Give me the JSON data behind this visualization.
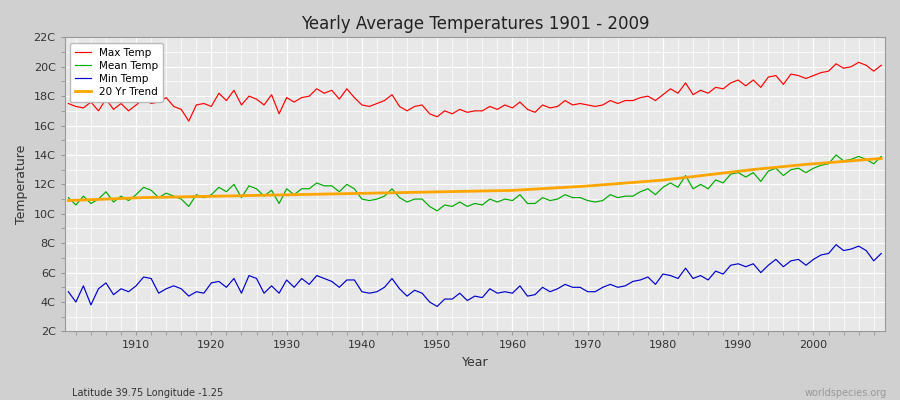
{
  "title": "Yearly Average Temperatures 1901 - 2009",
  "xlabel": "Year",
  "ylabel": "Temperature",
  "subtitle": "Latitude 39.75 Longitude -1.25",
  "watermark": "worldspecies.org",
  "years": [
    1901,
    1902,
    1903,
    1904,
    1905,
    1906,
    1907,
    1908,
    1909,
    1910,
    1911,
    1912,
    1913,
    1914,
    1915,
    1916,
    1917,
    1918,
    1919,
    1920,
    1921,
    1922,
    1923,
    1924,
    1925,
    1926,
    1927,
    1928,
    1929,
    1930,
    1931,
    1932,
    1933,
    1934,
    1935,
    1936,
    1937,
    1938,
    1939,
    1940,
    1941,
    1942,
    1943,
    1944,
    1945,
    1946,
    1947,
    1948,
    1949,
    1950,
    1951,
    1952,
    1953,
    1954,
    1955,
    1956,
    1957,
    1958,
    1959,
    1960,
    1961,
    1962,
    1963,
    1964,
    1965,
    1966,
    1967,
    1968,
    1969,
    1970,
    1971,
    1972,
    1973,
    1974,
    1975,
    1976,
    1977,
    1978,
    1979,
    1980,
    1981,
    1982,
    1983,
    1984,
    1985,
    1986,
    1987,
    1988,
    1989,
    1990,
    1991,
    1992,
    1993,
    1994,
    1995,
    1996,
    1997,
    1998,
    1999,
    2000,
    2001,
    2002,
    2003,
    2004,
    2005,
    2006,
    2007,
    2008,
    2009
  ],
  "max_temp": [
    17.5,
    17.3,
    17.2,
    17.6,
    17.0,
    17.8,
    17.1,
    17.5,
    17.0,
    17.4,
    17.8,
    17.5,
    17.6,
    17.9,
    17.3,
    17.1,
    16.3,
    17.4,
    17.5,
    17.3,
    18.2,
    17.7,
    18.4,
    17.4,
    18.0,
    17.8,
    17.4,
    18.1,
    16.8,
    17.9,
    17.6,
    17.9,
    18.0,
    18.5,
    18.2,
    18.4,
    17.8,
    18.5,
    17.9,
    17.4,
    17.3,
    17.5,
    17.7,
    18.1,
    17.3,
    17.0,
    17.3,
    17.4,
    16.8,
    16.6,
    17.0,
    16.8,
    17.1,
    16.9,
    17.0,
    17.0,
    17.3,
    17.1,
    17.4,
    17.2,
    17.6,
    17.1,
    16.9,
    17.4,
    17.2,
    17.3,
    17.7,
    17.4,
    17.5,
    17.4,
    17.3,
    17.4,
    17.7,
    17.5,
    17.7,
    17.7,
    17.9,
    18.0,
    17.7,
    18.1,
    18.5,
    18.2,
    18.9,
    18.1,
    18.4,
    18.2,
    18.6,
    18.5,
    18.9,
    19.1,
    18.7,
    19.1,
    18.6,
    19.3,
    19.4,
    18.8,
    19.5,
    19.4,
    19.2,
    19.4,
    19.6,
    19.7,
    20.2,
    19.9,
    20.0,
    20.3,
    20.1,
    19.7,
    20.1
  ],
  "mean_temp": [
    11.1,
    10.6,
    11.2,
    10.7,
    11.0,
    11.5,
    10.8,
    11.2,
    10.9,
    11.3,
    11.8,
    11.6,
    11.1,
    11.4,
    11.2,
    11.0,
    10.5,
    11.3,
    11.1,
    11.3,
    11.8,
    11.5,
    12.0,
    11.1,
    11.9,
    11.7,
    11.2,
    11.6,
    10.7,
    11.7,
    11.3,
    11.7,
    11.7,
    12.1,
    11.9,
    11.9,
    11.5,
    12.0,
    11.7,
    11.0,
    10.9,
    11.0,
    11.2,
    11.7,
    11.1,
    10.8,
    11.0,
    11.0,
    10.5,
    10.2,
    10.6,
    10.5,
    10.8,
    10.5,
    10.7,
    10.6,
    11.0,
    10.8,
    11.0,
    10.9,
    11.3,
    10.7,
    10.7,
    11.1,
    10.9,
    11.0,
    11.3,
    11.1,
    11.1,
    10.9,
    10.8,
    10.9,
    11.3,
    11.1,
    11.2,
    11.2,
    11.5,
    11.7,
    11.3,
    11.8,
    12.1,
    11.8,
    12.6,
    11.7,
    12.0,
    11.7,
    12.3,
    12.1,
    12.7,
    12.8,
    12.5,
    12.8,
    12.2,
    12.9,
    13.1,
    12.6,
    13.0,
    13.1,
    12.8,
    13.1,
    13.3,
    13.4,
    14.0,
    13.6,
    13.7,
    13.9,
    13.7,
    13.4,
    13.9
  ],
  "min_temp": [
    4.7,
    4.0,
    5.1,
    3.8,
    4.9,
    5.3,
    4.5,
    4.9,
    4.7,
    5.1,
    5.7,
    5.6,
    4.6,
    4.9,
    5.1,
    4.9,
    4.4,
    4.7,
    4.6,
    5.3,
    5.4,
    5.0,
    5.6,
    4.6,
    5.8,
    5.6,
    4.6,
    5.1,
    4.6,
    5.5,
    5.0,
    5.6,
    5.2,
    5.8,
    5.6,
    5.4,
    5.0,
    5.5,
    5.5,
    4.7,
    4.6,
    4.7,
    5.0,
    5.6,
    4.9,
    4.4,
    4.8,
    4.6,
    4.0,
    3.7,
    4.2,
    4.2,
    4.6,
    4.1,
    4.4,
    4.3,
    4.9,
    4.6,
    4.7,
    4.6,
    5.1,
    4.4,
    4.5,
    5.0,
    4.7,
    4.9,
    5.2,
    5.0,
    5.0,
    4.7,
    4.7,
    5.0,
    5.2,
    5.0,
    5.1,
    5.4,
    5.5,
    5.7,
    5.2,
    5.9,
    5.8,
    5.6,
    6.3,
    5.6,
    5.8,
    5.5,
    6.1,
    5.9,
    6.5,
    6.6,
    6.4,
    6.6,
    6.0,
    6.5,
    6.9,
    6.4,
    6.8,
    6.9,
    6.5,
    6.9,
    7.2,
    7.3,
    7.9,
    7.5,
    7.6,
    7.8,
    7.5,
    6.8,
    7.3
  ],
  "trend": [
    10.9,
    10.92,
    10.94,
    10.96,
    10.98,
    11.0,
    11.02,
    11.04,
    11.06,
    11.08,
    11.1,
    11.11,
    11.12,
    11.13,
    11.14,
    11.15,
    11.16,
    11.17,
    11.18,
    11.19,
    11.2,
    11.21,
    11.22,
    11.23,
    11.24,
    11.25,
    11.26,
    11.27,
    11.28,
    11.29,
    11.3,
    11.31,
    11.32,
    11.33,
    11.34,
    11.35,
    11.36,
    11.37,
    11.38,
    11.39,
    11.4,
    11.41,
    11.42,
    11.43,
    11.44,
    11.45,
    11.46,
    11.47,
    11.48,
    11.49,
    11.5,
    11.51,
    11.52,
    11.53,
    11.54,
    11.55,
    11.56,
    11.57,
    11.58,
    11.59,
    11.62,
    11.65,
    11.68,
    11.71,
    11.74,
    11.77,
    11.8,
    11.83,
    11.86,
    11.89,
    11.93,
    11.97,
    12.01,
    12.05,
    12.09,
    12.13,
    12.17,
    12.21,
    12.25,
    12.29,
    12.35,
    12.41,
    12.47,
    12.53,
    12.59,
    12.65,
    12.71,
    12.77,
    12.83,
    12.89,
    12.95,
    13.01,
    13.06,
    13.11,
    13.16,
    13.21,
    13.26,
    13.31,
    13.36,
    13.4,
    13.44,
    13.48,
    13.52,
    13.56,
    13.6,
    13.64,
    13.68,
    13.72,
    13.76
  ],
  "max_color": "#ff0000",
  "mean_color": "#00aa00",
  "min_color": "#0000cc",
  "trend_color": "#ffa500",
  "ylim": [
    2,
    22
  ],
  "yticks": [
    2,
    4,
    6,
    8,
    10,
    12,
    14,
    16,
    18,
    20,
    22
  ],
  "ytick_labels": [
    "2C",
    "4C",
    "6C",
    "8C",
    "10C",
    "12C",
    "14C",
    "16C",
    "18C",
    "20C",
    "22C"
  ],
  "xticks": [
    1910,
    1920,
    1930,
    1940,
    1950,
    1960,
    1970,
    1980,
    1990,
    2000
  ],
  "legend_labels": [
    "Max Temp",
    "Mean Temp",
    "Min Temp",
    "20 Yr Trend"
  ]
}
